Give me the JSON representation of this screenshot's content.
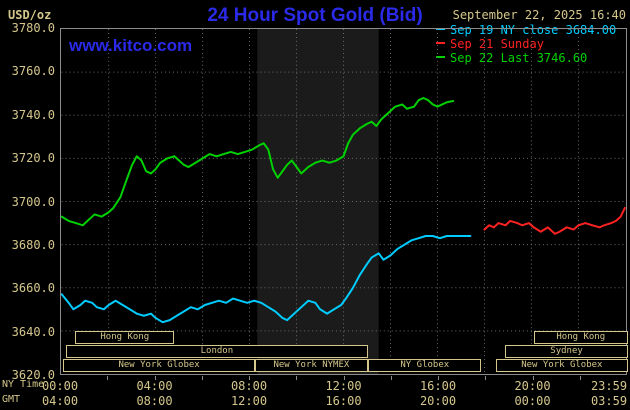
{
  "header": {
    "unit": "USD/oz",
    "title": "24 Hour Spot Gold (Bid)",
    "datetime": "September 22, 2025 16:40",
    "watermark": "www.kitco.com"
  },
  "colors": {
    "background": "#000000",
    "blue": "#2a2ae8",
    "tan": "#d5c78c",
    "cyan": "#00ccff",
    "red": "#ff2222",
    "green": "#00d200",
    "grid": "#6a6a6a",
    "frame": "#8c8c8c",
    "band": "#1b1b1b"
  },
  "legend": [
    {
      "label": "Sep 19 NY close 3684.00",
      "color": "cyan"
    },
    {
      "label": "Sep 21 Sunday",
      "color": "red"
    },
    {
      "label": "Sep 22 Last 3746.60",
      "color": "green"
    }
  ],
  "axes": {
    "ny_label": "NY Time",
    "gmt_label": "GMT",
    "y_ticks": [
      "3780.0",
      "3760.0",
      "3740.0",
      "3720.0",
      "3700.0",
      "3680.0",
      "3660.0",
      "3640.0",
      "3620.0"
    ],
    "x_ticks": [
      {
        "hour": 0,
        "ny": "00:00",
        "gmt": "04:00"
      },
      {
        "hour": 4,
        "ny": "04:00",
        "gmt": "08:00"
      },
      {
        "hour": 8,
        "ny": "08:00",
        "gmt": "12:00"
      },
      {
        "hour": 12,
        "ny": "12:00",
        "gmt": "16:00"
      },
      {
        "hour": 16,
        "ny": "16:00",
        "gmt": "20:00"
      },
      {
        "hour": 20,
        "ny": "20:00",
        "gmt": "00:00"
      },
      {
        "hour": 23.983,
        "ny": "23:59",
        "gmt": "03:59"
      }
    ],
    "minor_tick_hours": [
      2,
      4,
      6,
      8,
      10,
      12,
      14,
      16,
      18,
      20,
      22
    ]
  },
  "sessions": [
    {
      "row": 0,
      "label": "Hong Kong",
      "start_hour": 0.6,
      "end_hour": 4.8
    },
    {
      "row": 0,
      "label": "Hong Kong",
      "start_hour": 20.0,
      "end_hour": 24.0
    },
    {
      "row": 1,
      "label": "London",
      "start_hour": 0.2,
      "end_hour": 13.0
    },
    {
      "row": 1,
      "label": "Sydney",
      "start_hour": 18.8,
      "end_hour": 24.0
    },
    {
      "row": 2,
      "label": "New York Globex",
      "start_hour": 0.1,
      "end_hour": 8.2
    },
    {
      "row": 2,
      "label": "New York NYMEX",
      "start_hour": 8.2,
      "end_hour": 13.0
    },
    {
      "row": 2,
      "label": "NY Globex",
      "start_hour": 13.0,
      "end_hour": 17.8
    },
    {
      "row": 2,
      "label": "New York Globex",
      "start_hour": 18.4,
      "end_hour": 24.0
    }
  ],
  "chart_data": {
    "type": "line",
    "title": "24 Hour Spot Gold (Bid)",
    "ylabel": "USD/oz",
    "ylim": [
      3620,
      3780
    ],
    "xlim_hours": [
      0,
      24
    ],
    "grid": true,
    "legend_position": "top-right",
    "nymex_band_hours": [
      8.33,
      13.5
    ],
    "series": [
      {
        "name": "Sep 19 NY close",
        "color_key": "cyan",
        "final_value": 3684.0,
        "points": [
          [
            0,
            3657
          ],
          [
            0.3,
            3653
          ],
          [
            0.5,
            3650
          ],
          [
            0.8,
            3652
          ],
          [
            1,
            3654
          ],
          [
            1.3,
            3653
          ],
          [
            1.5,
            3651
          ],
          [
            1.8,
            3650
          ],
          [
            2,
            3652
          ],
          [
            2.3,
            3654
          ],
          [
            2.6,
            3652
          ],
          [
            2.9,
            3650
          ],
          [
            3.2,
            3648
          ],
          [
            3.5,
            3647
          ],
          [
            3.8,
            3648
          ],
          [
            4,
            3646
          ],
          [
            4.3,
            3644
          ],
          [
            4.6,
            3645
          ],
          [
            4.9,
            3647
          ],
          [
            5.2,
            3649
          ],
          [
            5.5,
            3651
          ],
          [
            5.8,
            3650
          ],
          [
            6.1,
            3652
          ],
          [
            6.4,
            3653
          ],
          [
            6.7,
            3654
          ],
          [
            7,
            3653
          ],
          [
            7.3,
            3655
          ],
          [
            7.6,
            3654
          ],
          [
            7.9,
            3653
          ],
          [
            8.2,
            3654
          ],
          [
            8.5,
            3653
          ],
          [
            8.8,
            3651
          ],
          [
            9.1,
            3649
          ],
          [
            9.4,
            3646
          ],
          [
            9.6,
            3645
          ],
          [
            9.9,
            3648
          ],
          [
            10.2,
            3651
          ],
          [
            10.5,
            3654
          ],
          [
            10.8,
            3653
          ],
          [
            11,
            3650
          ],
          [
            11.3,
            3648
          ],
          [
            11.6,
            3650
          ],
          [
            11.9,
            3652
          ],
          [
            12.1,
            3655
          ],
          [
            12.4,
            3660
          ],
          [
            12.7,
            3666
          ],
          [
            13,
            3671
          ],
          [
            13.2,
            3674
          ],
          [
            13.5,
            3676
          ],
          [
            13.7,
            3673
          ],
          [
            14,
            3675
          ],
          [
            14.3,
            3678
          ],
          [
            14.6,
            3680
          ],
          [
            14.9,
            3682
          ],
          [
            15.2,
            3683
          ],
          [
            15.5,
            3684
          ],
          [
            15.8,
            3684
          ],
          [
            16.1,
            3683
          ],
          [
            16.4,
            3684
          ],
          [
            16.8,
            3684
          ],
          [
            17.2,
            3684
          ],
          [
            17.4,
            3684
          ]
        ]
      },
      {
        "name": "Sep 21 Sunday",
        "color_key": "red",
        "points": [
          [
            18,
            3687
          ],
          [
            18.2,
            3689
          ],
          [
            18.4,
            3688
          ],
          [
            18.6,
            3690
          ],
          [
            18.9,
            3689
          ],
          [
            19.1,
            3691
          ],
          [
            19.4,
            3690
          ],
          [
            19.6,
            3689
          ],
          [
            19.9,
            3690
          ],
          [
            20.1,
            3688
          ],
          [
            20.4,
            3686
          ],
          [
            20.7,
            3688
          ],
          [
            21,
            3685
          ],
          [
            21.2,
            3686
          ],
          [
            21.5,
            3688
          ],
          [
            21.8,
            3687
          ],
          [
            22,
            3689
          ],
          [
            22.3,
            3690
          ],
          [
            22.6,
            3689
          ],
          [
            22.9,
            3688
          ],
          [
            23.1,
            3689
          ],
          [
            23.4,
            3690
          ],
          [
            23.6,
            3691
          ],
          [
            23.8,
            3693
          ],
          [
            23.98,
            3697
          ]
        ]
      },
      {
        "name": "Sep 22 Last",
        "color_key": "green",
        "final_value": 3746.6,
        "points": [
          [
            0,
            3693
          ],
          [
            0.3,
            3691
          ],
          [
            0.6,
            3690
          ],
          [
            0.9,
            3689
          ],
          [
            1.1,
            3691
          ],
          [
            1.4,
            3694
          ],
          [
            1.7,
            3693
          ],
          [
            2,
            3695
          ],
          [
            2.2,
            3697
          ],
          [
            2.5,
            3702
          ],
          [
            2.8,
            3711
          ],
          [
            3,
            3717
          ],
          [
            3.2,
            3721
          ],
          [
            3.4,
            3719
          ],
          [
            3.6,
            3714
          ],
          [
            3.8,
            3713
          ],
          [
            4,
            3715
          ],
          [
            4.2,
            3718
          ],
          [
            4.5,
            3720
          ],
          [
            4.8,
            3721
          ],
          [
            5,
            3719
          ],
          [
            5.2,
            3717
          ],
          [
            5.4,
            3716
          ],
          [
            5.7,
            3718
          ],
          [
            6,
            3720
          ],
          [
            6.3,
            3722
          ],
          [
            6.6,
            3721
          ],
          [
            6.9,
            3722
          ],
          [
            7.2,
            3723
          ],
          [
            7.5,
            3722
          ],
          [
            7.8,
            3723
          ],
          [
            8.1,
            3724
          ],
          [
            8.4,
            3726
          ],
          [
            8.6,
            3727
          ],
          [
            8.8,
            3724
          ],
          [
            9,
            3715
          ],
          [
            9.2,
            3711
          ],
          [
            9.4,
            3714
          ],
          [
            9.6,
            3717
          ],
          [
            9.8,
            3719
          ],
          [
            10,
            3716
          ],
          [
            10.2,
            3713
          ],
          [
            10.5,
            3716
          ],
          [
            10.8,
            3718
          ],
          [
            11.1,
            3719
          ],
          [
            11.4,
            3718
          ],
          [
            11.7,
            3719
          ],
          [
            12,
            3721
          ],
          [
            12.2,
            3727
          ],
          [
            12.4,
            3731
          ],
          [
            12.7,
            3734
          ],
          [
            13,
            3736
          ],
          [
            13.2,
            3737
          ],
          [
            13.4,
            3735
          ],
          [
            13.6,
            3738
          ],
          [
            13.9,
            3741
          ],
          [
            14.2,
            3744
          ],
          [
            14.5,
            3745
          ],
          [
            14.7,
            3743
          ],
          [
            15,
            3744
          ],
          [
            15.2,
            3747
          ],
          [
            15.4,
            3748
          ],
          [
            15.6,
            3747
          ],
          [
            15.8,
            3745
          ],
          [
            16,
            3744
          ],
          [
            16.2,
            3745
          ],
          [
            16.4,
            3746
          ],
          [
            16.67,
            3746.6
          ]
        ]
      }
    ]
  }
}
